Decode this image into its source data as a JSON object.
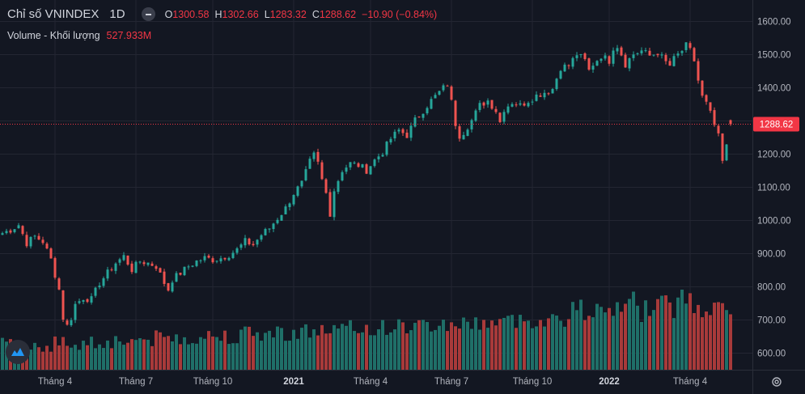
{
  "legend": {
    "symbol": "Chỉ số VNINDEX",
    "timeframe": "1D",
    "open_label": "O",
    "open_value": "1300.58",
    "high_label": "H",
    "high_value": "1302.66",
    "low_label": "L",
    "low_value": "1283.32",
    "close_label": "C",
    "close_value": "1288.62",
    "change": "−10.90 (−0.84%)",
    "volume_label": "Volume - Khối lượng",
    "volume_value": "527.933M"
  },
  "colors": {
    "background": "#131722",
    "grid": "#232632",
    "up": "#26a69a",
    "down": "#ef5350",
    "up_volume": "#1f6f68",
    "down_volume": "#a83a3a",
    "text": "#b2b5be",
    "last_price_bg": "#f23645"
  },
  "chart_data": {
    "type": "candlestick",
    "title": "Chỉ số VNINDEX · 1D",
    "y_axis": {
      "ylim": [
        548,
        1663
      ],
      "ticks": [
        "1600.00",
        "1500.00",
        "1400.00",
        "1300.00",
        "1200.00",
        "1100.00",
        "1000.00",
        "900.00",
        "800.00",
        "700.00",
        "600.00"
      ],
      "tick_values": [
        1600,
        1500,
        1400,
        1300,
        1200,
        1100,
        1000,
        900,
        800,
        700,
        600
      ]
    },
    "x_axis": {
      "labels": [
        "Tháng 4",
        "Tháng 7",
        "Tháng 10",
        "2021",
        "Tháng 4",
        "Tháng 7",
        "Tháng 10",
        "2022",
        "Tháng 4"
      ],
      "bold": [
        false,
        false,
        false,
        true,
        false,
        false,
        false,
        true,
        false
      ],
      "label_positions": [
        13,
        33,
        52,
        72,
        91,
        111,
        131,
        150,
        170
      ]
    },
    "candle_count": 181,
    "last_price": 1288.62,
    "last_price_label": "1288.62",
    "series_close_anchors": [
      [
        0,
        960
      ],
      [
        2,
        970
      ],
      [
        4,
        985
      ],
      [
        6,
        930
      ],
      [
        8,
        950
      ],
      [
        10,
        935
      ],
      [
        12,
        880
      ],
      [
        14,
        790
      ],
      [
        15,
        705
      ],
      [
        16,
        680
      ],
      [
        17,
        705
      ],
      [
        18,
        745
      ],
      [
        20,
        765
      ],
      [
        22,
        760
      ],
      [
        24,
        810
      ],
      [
        26,
        840
      ],
      [
        28,
        870
      ],
      [
        30,
        890
      ],
      [
        32,
        850
      ],
      [
        34,
        875
      ],
      [
        36,
        870
      ],
      [
        38,
        860
      ],
      [
        40,
        810
      ],
      [
        41,
        790
      ],
      [
        42,
        820
      ],
      [
        44,
        840
      ],
      [
        46,
        860
      ],
      [
        48,
        875
      ],
      [
        50,
        885
      ],
      [
        52,
        880
      ],
      [
        54,
        885
      ],
      [
        56,
        895
      ],
      [
        58,
        910
      ],
      [
        60,
        935
      ],
      [
        62,
        925
      ],
      [
        64,
        955
      ],
      [
        66,
        975
      ],
      [
        68,
        1005
      ],
      [
        70,
        1035
      ],
      [
        72,
        1080
      ],
      [
        74,
        1110
      ],
      [
        76,
        1175
      ],
      [
        77,
        1195
      ],
      [
        78,
        1170
      ],
      [
        79,
        1120
      ],
      [
        80,
        1080
      ],
      [
        81,
        1020
      ],
      [
        82,
        1090
      ],
      [
        84,
        1150
      ],
      [
        86,
        1170
      ],
      [
        88,
        1165
      ],
      [
        90,
        1150
      ],
      [
        92,
        1180
      ],
      [
        94,
        1205
      ],
      [
        96,
        1245
      ],
      [
        98,
        1270
      ],
      [
        100,
        1255
      ],
      [
        102,
        1300
      ],
      [
        104,
        1330
      ],
      [
        106,
        1360
      ],
      [
        108,
        1385
      ],
      [
        110,
        1410
      ],
      [
        111,
        1355
      ],
      [
        112,
        1290
      ],
      [
        113,
        1255
      ],
      [
        114,
        1265
      ],
      [
        116,
        1300
      ],
      [
        118,
        1345
      ],
      [
        120,
        1360
      ],
      [
        122,
        1330
      ],
      [
        123,
        1295
      ],
      [
        124,
        1335
      ],
      [
        126,
        1355
      ],
      [
        128,
        1345
      ],
      [
        130,
        1360
      ],
      [
        132,
        1375
      ],
      [
        134,
        1385
      ],
      [
        136,
        1395
      ],
      [
        138,
        1460
      ],
      [
        140,
        1465
      ],
      [
        142,
        1500
      ],
      [
        144,
        1480
      ],
      [
        145,
        1450
      ],
      [
        146,
        1470
      ],
      [
        148,
        1495
      ],
      [
        150,
        1480
      ],
      [
        151,
        1520
      ],
      [
        152,
        1525
      ],
      [
        153,
        1500
      ],
      [
        154,
        1470
      ],
      [
        156,
        1500
      ],
      [
        158,
        1510
      ],
      [
        160,
        1495
      ],
      [
        162,
        1505
      ],
      [
        164,
        1475
      ],
      [
        165,
        1465
      ],
      [
        166,
        1485
      ],
      [
        168,
        1510
      ],
      [
        169,
        1525
      ],
      [
        170,
        1510
      ],
      [
        171,
        1480
      ],
      [
        172,
        1420
      ],
      [
        173,
        1370
      ],
      [
        174,
        1350
      ],
      [
        175,
        1320
      ],
      [
        176,
        1285
      ],
      [
        177,
        1250
      ],
      [
        178,
        1175
      ],
      [
        179,
        1220
      ],
      [
        180,
        1288.62
      ]
    ],
    "volume_note": "volume bars shown at bottom, unscaled (no volume axis)"
  },
  "ui": {
    "logo_name": "tradingview-logo",
    "settings_icon": "gear-icon"
  }
}
